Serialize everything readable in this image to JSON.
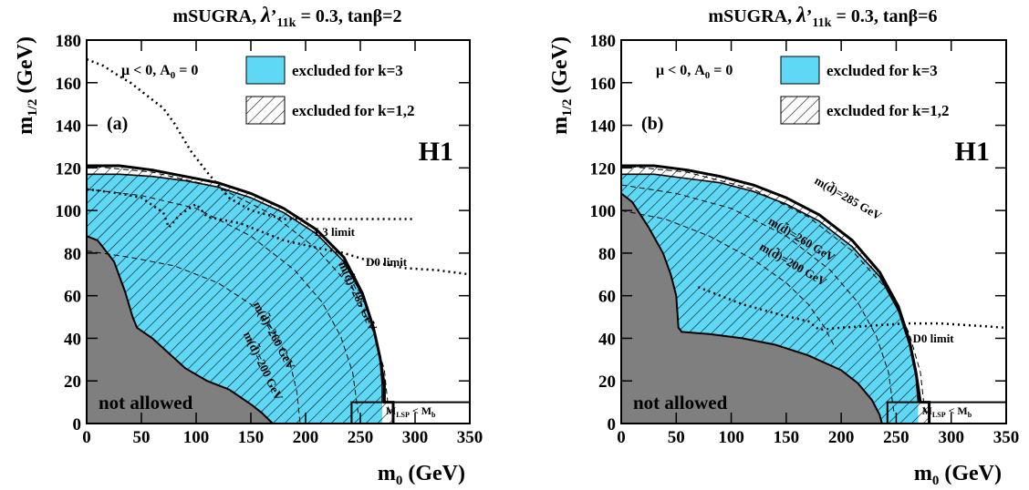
{
  "chart_data": [
    {
      "type": "area",
      "panel": "(a)",
      "title_main": "mSUGRA, ",
      "title_lambda": "λ",
      "title_prime": "’",
      "title_sub": "11k",
      "title_rest": " = 0.3, tanβ=2",
      "xlabel_main": "m",
      "xlabel_sub": "0",
      "xlabel_unit": " (GeV)",
      "ylabel_main": "m",
      "ylabel_sub": "1/2",
      "ylabel_unit": " (GeV)",
      "xlim": [
        0,
        350
      ],
      "ylim": [
        0,
        180
      ],
      "xticks": [
        "0",
        "50",
        "100",
        "150",
        "200",
        "250",
        "300",
        "350"
      ],
      "yticks": [
        "0",
        "20",
        "40",
        "60",
        "80",
        "100",
        "120",
        "140",
        "160",
        "180"
      ],
      "corner_text": "μ < 0, A",
      "corner_sub": "0",
      "corner_rest": " = 0",
      "legend": [
        "excluded for k=3",
        "excluded for k=1,2"
      ],
      "logo": "H1",
      "not_allowed_label": "not allowed",
      "mlsp_label_a": "M",
      "mlsp_label_sub_a": "LSP",
      "mlsp_label_mid": " < M",
      "mlsp_label_sub_b": "b",
      "excluded_k3": [
        [
          0,
          117
        ],
        [
          30,
          117
        ],
        [
          60,
          116
        ],
        [
          90,
          114
        ],
        [
          120,
          111
        ],
        [
          150,
          106
        ],
        [
          180,
          99
        ],
        [
          210,
          89
        ],
        [
          235,
          76
        ],
        [
          252,
          60
        ],
        [
          262,
          44
        ],
        [
          268,
          30
        ],
        [
          270,
          18
        ],
        [
          270,
          10
        ]
      ],
      "excluded_k12": [
        [
          0,
          121
        ],
        [
          30,
          121
        ],
        [
          60,
          119
        ],
        [
          90,
          116
        ],
        [
          120,
          113
        ],
        [
          150,
          108
        ],
        [
          180,
          101
        ],
        [
          210,
          91
        ],
        [
          235,
          78
        ],
        [
          252,
          61
        ],
        [
          262,
          45
        ],
        [
          268,
          31
        ],
        [
          272,
          18
        ],
        [
          272,
          10
        ],
        [
          280,
          10
        ],
        [
          280,
          0
        ]
      ],
      "not_allowed": [
        [
          0,
          88
        ],
        [
          10,
          86
        ],
        [
          25,
          76
        ],
        [
          35,
          62
        ],
        [
          42,
          50
        ],
        [
          46,
          45
        ],
        [
          60,
          40
        ],
        [
          75,
          33
        ],
        [
          90,
          26
        ],
        [
          110,
          20
        ],
        [
          130,
          16
        ],
        [
          150,
          9
        ],
        [
          160,
          5
        ],
        [
          168,
          1
        ],
        [
          170,
          0
        ]
      ],
      "mlsp_box": [
        [
          242,
          10
        ],
        [
          350,
          10
        ]
      ],
      "l3_limit": [
        [
          0,
          171
        ],
        [
          15,
          168
        ],
        [
          30,
          163
        ],
        [
          40,
          160
        ],
        [
          55,
          154
        ],
        [
          70,
          148
        ],
        [
          80,
          141
        ],
        [
          95,
          128
        ],
        [
          110,
          118
        ],
        [
          130,
          106
        ],
        [
          150,
          100
        ],
        [
          180,
          96
        ],
        [
          200,
          96
        ],
        [
          230,
          96
        ],
        [
          260,
          96
        ],
        [
          300,
          96
        ]
      ],
      "l3_label": "L3 limit",
      "d0_limit": [
        [
          0,
          110
        ],
        [
          30,
          108
        ],
        [
          50,
          106
        ],
        [
          70,
          99
        ],
        [
          75,
          92
        ],
        [
          85,
          98
        ],
        [
          100,
          103
        ],
        [
          110,
          97
        ],
        [
          140,
          94
        ],
        [
          180,
          86
        ],
        [
          215,
          82
        ],
        [
          235,
          80
        ],
        [
          260,
          76
        ],
        [
          290,
          73
        ],
        [
          320,
          72
        ],
        [
          350,
          70
        ]
      ],
      "d0_label": "D0 limit",
      "squark_labels": [
        "m(d̃)=200 GeV",
        "m(d̃)=260 GeV",
        "m(d̃)=285 GeV"
      ],
      "squark_200": [
        [
          0,
          81
        ],
        [
          40,
          78
        ],
        [
          80,
          74
        ],
        [
          120,
          66
        ],
        [
          150,
          56
        ],
        [
          170,
          44
        ],
        [
          185,
          30
        ],
        [
          192,
          15
        ],
        [
          195,
          0
        ]
      ],
      "squark_260": [
        [
          0,
          110
        ],
        [
          50,
          107
        ],
        [
          100,
          101
        ],
        [
          150,
          88
        ],
        [
          190,
          72
        ],
        [
          215,
          57
        ],
        [
          232,
          41
        ],
        [
          243,
          24
        ],
        [
          248,
          5
        ]
      ],
      "squark_285": [
        [
          0,
          121
        ],
        [
          60,
          118
        ],
        [
          120,
          111
        ],
        [
          170,
          98
        ],
        [
          210,
          82
        ],
        [
          245,
          62
        ],
        [
          262,
          43
        ],
        [
          272,
          25
        ],
        [
          276,
          5
        ]
      ]
    },
    {
      "type": "area",
      "panel": "(b)",
      "title_main": "mSUGRA, ",
      "title_lambda": "λ",
      "title_prime": "’",
      "title_sub": "11k",
      "title_rest": " = 0.3, tanβ=6",
      "xlabel_main": "m",
      "xlabel_sub": "0",
      "xlabel_unit": " (GeV)",
      "ylabel_main": "m",
      "ylabel_sub": "1/2",
      "ylabel_unit": " (GeV)",
      "xlim": [
        0,
        350
      ],
      "ylim": [
        0,
        180
      ],
      "xticks": [
        "0",
        "50",
        "100",
        "150",
        "200",
        "250",
        "300",
        "350"
      ],
      "yticks": [
        "0",
        "20",
        "40",
        "60",
        "80",
        "100",
        "120",
        "140",
        "160",
        "180"
      ],
      "corner_text": "μ < 0, A",
      "corner_sub": "0",
      "corner_rest": " = 0",
      "legend": [
        "excluded for k=3",
        "excluded for k=1,2"
      ],
      "logo": "H1",
      "not_allowed_label": "not allowed",
      "mlsp_label_a": "M",
      "mlsp_label_sub_a": "LSP",
      "mlsp_label_mid": " < M",
      "mlsp_label_sub_b": "b",
      "excluded_k3": [
        [
          0,
          117
        ],
        [
          30,
          117
        ],
        [
          60,
          115
        ],
        [
          90,
          113
        ],
        [
          120,
          109
        ],
        [
          150,
          103
        ],
        [
          180,
          95
        ],
        [
          210,
          83
        ],
        [
          235,
          69
        ],
        [
          252,
          53
        ],
        [
          262,
          37
        ],
        [
          268,
          22
        ],
        [
          270,
          10
        ]
      ],
      "excluded_k12": [
        [
          0,
          121
        ],
        [
          30,
          121
        ],
        [
          60,
          119
        ],
        [
          90,
          116
        ],
        [
          120,
          112
        ],
        [
          150,
          106
        ],
        [
          180,
          98
        ],
        [
          210,
          86
        ],
        [
          235,
          71
        ],
        [
          252,
          55
        ],
        [
          262,
          39
        ],
        [
          268,
          24
        ],
        [
          272,
          10
        ],
        [
          280,
          10
        ],
        [
          280,
          0
        ]
      ],
      "not_allowed": [
        [
          0,
          108
        ],
        [
          10,
          104
        ],
        [
          25,
          92
        ],
        [
          38,
          80
        ],
        [
          45,
          70
        ],
        [
          50,
          60
        ],
        [
          52,
          45
        ],
        [
          55,
          43
        ],
        [
          80,
          42
        ],
        [
          110,
          40
        ],
        [
          140,
          37
        ],
        [
          170,
          32
        ],
        [
          200,
          25
        ],
        [
          215,
          19
        ],
        [
          228,
          11
        ],
        [
          235,
          4
        ],
        [
          237,
          0
        ]
      ],
      "mlsp_box": [
        [
          242,
          10
        ],
        [
          350,
          10
        ]
      ],
      "d0_limit": [
        [
          70,
          64
        ],
        [
          110,
          56
        ],
        [
          145,
          51
        ],
        [
          170,
          48
        ],
        [
          180,
          44
        ],
        [
          200,
          45
        ],
        [
          230,
          46
        ],
        [
          260,
          47
        ],
        [
          290,
          47
        ],
        [
          320,
          46
        ],
        [
          350,
          45
        ]
      ],
      "d0_label": "D0 limit",
      "squark_labels": [
        "m(d̃)=200 GeV",
        "m(d̃)=260 GeV",
        "m(d̃)=285 GeV"
      ],
      "squark_200": [
        [
          0,
          100
        ],
        [
          40,
          96
        ],
        [
          80,
          88
        ],
        [
          120,
          77
        ],
        [
          150,
          66
        ],
        [
          170,
          56
        ],
        [
          185,
          45
        ],
        [
          195,
          35
        ]
      ],
      "squark_260": [
        [
          0,
          112
        ],
        [
          50,
          108
        ],
        [
          100,
          101
        ],
        [
          150,
          88
        ],
        [
          190,
          72
        ],
        [
          215,
          57
        ],
        [
          232,
          41
        ],
        [
          243,
          24
        ],
        [
          248,
          5
        ]
      ],
      "squark_285": [
        [
          0,
          121
        ],
        [
          60,
          118
        ],
        [
          120,
          110
        ],
        [
          170,
          97
        ],
        [
          210,
          81
        ],
        [
          245,
          61
        ],
        [
          262,
          42
        ],
        [
          272,
          24
        ],
        [
          276,
          5
        ]
      ]
    }
  ],
  "colors": {
    "excluded_k3": "#5ed8f4",
    "not_allowed": "#7f7f7f",
    "hatch": "#000000"
  }
}
